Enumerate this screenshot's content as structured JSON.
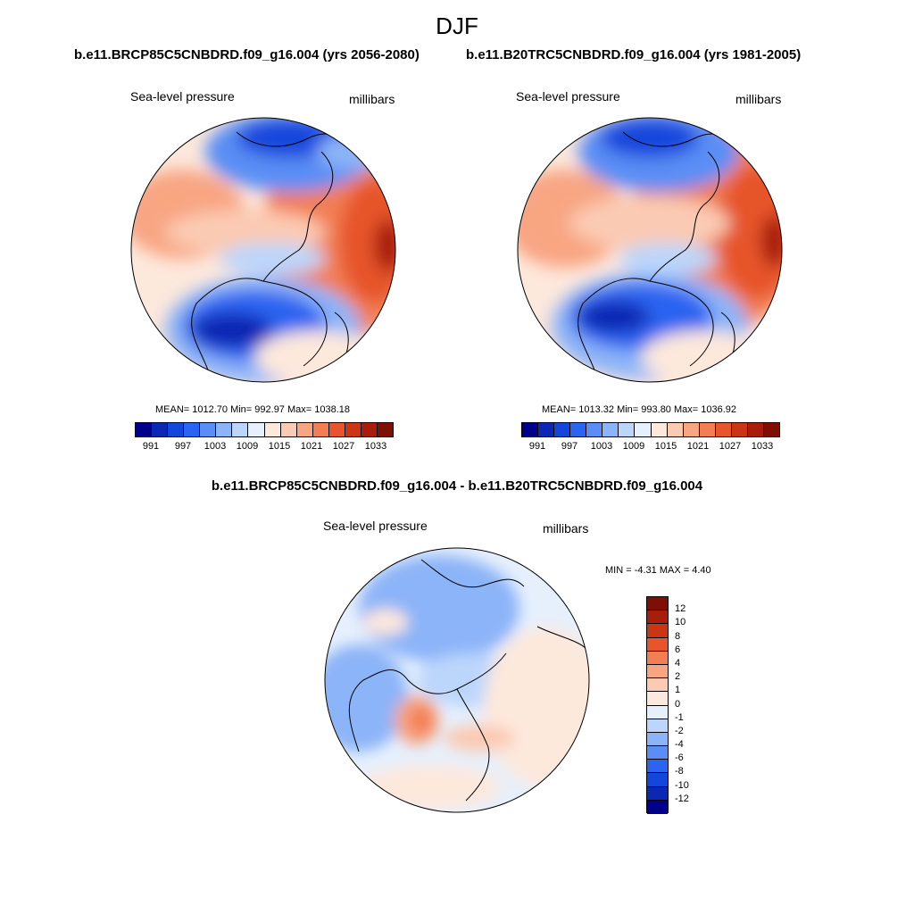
{
  "page": {
    "title": "DJF",
    "header_left": "b.e11.BRCP85C5CNBDRD.f09_g16.004 (yrs 2056-2080)",
    "header_right": "b.e11.B20TRC5CNBDRD.f09_g16.004 (yrs 1981-2005)",
    "diff_title": "b.e11.BRCP85C5CNBDRD.f09_g16.004 - b.e11.B20TRC5CNBDRD.f09_g16.004"
  },
  "panels": [
    {
      "variable": "Sea-level pressure",
      "units": "millibars",
      "stats_text": "MEAN= 1012.70  Min= 992.97  Max= 1038.18"
    },
    {
      "variable": "Sea-level pressure",
      "units": "millibars",
      "stats_text": "MEAN= 1013.32  Min= 993.80  Max= 1036.92"
    },
    {
      "variable": "Sea-level pressure",
      "units": "millibars",
      "stats_text": "MIN =  -4.31 MAX =   4.40"
    }
  ],
  "colors": {
    "abs_scale": [
      "#00008b",
      "#0a28b4",
      "#1446dc",
      "#2a64f0",
      "#5a8ef5",
      "#8cb4f8",
      "#bcd6fb",
      "#e6f0fd",
      "#fde8dc",
      "#fbcab3",
      "#f8a582",
      "#f37e53",
      "#e6552b",
      "#cc3514",
      "#a81e0a",
      "#7d0f05"
    ],
    "diff_scale": [
      "#7d0f05",
      "#a81e0a",
      "#cc3514",
      "#e6552b",
      "#f37e53",
      "#f8a582",
      "#fbcab3",
      "#fde8dc",
      "#e6f0fd",
      "#bcd6fb",
      "#8cb4f8",
      "#5a8ef5",
      "#2a64f0",
      "#1446dc",
      "#0a28b4",
      "#00008b"
    ]
  },
  "chart_data": [
    {
      "type": "heatmap",
      "projection": "polar-stereographic-north",
      "title": "Sea-level pressure",
      "units": "millibars",
      "period": "yrs 2056-2080",
      "case": "b.e11.BRCP85C5CNBDRD.f09_g16.004",
      "mean": 1012.7,
      "min": 992.97,
      "max": 1038.18,
      "colorbar_ticks": [
        "991",
        "997",
        "1003",
        "1009",
        "1015",
        "1021",
        "1027",
        "1033"
      ],
      "levels": [
        991,
        994,
        997,
        1000,
        1003,
        1006,
        1009,
        1012,
        1015,
        1018,
        1021,
        1024,
        1027,
        1030,
        1033
      ]
    },
    {
      "type": "heatmap",
      "projection": "polar-stereographic-north",
      "title": "Sea-level pressure",
      "units": "millibars",
      "period": "yrs 1981-2005",
      "case": "b.e11.B20TRC5CNBDRD.f09_g16.004",
      "mean": 1013.32,
      "min": 993.8,
      "max": 1036.92,
      "colorbar_ticks": [
        "991",
        "997",
        "1003",
        "1009",
        "1015",
        "1021",
        "1027",
        "1033"
      ],
      "levels": [
        991,
        994,
        997,
        1000,
        1003,
        1006,
        1009,
        1012,
        1015,
        1018,
        1021,
        1024,
        1027,
        1030,
        1033
      ]
    },
    {
      "type": "heatmap",
      "projection": "polar-stereographic-north",
      "title": "Sea-level pressure",
      "units": "millibars",
      "case": "b.e11.BRCP85C5CNBDRD.f09_g16.004 - b.e11.B20TRC5CNBDRD.f09_g16.004",
      "min": -4.31,
      "max": 4.4,
      "colorbar_ticks": [
        "12",
        "10",
        "8",
        "6",
        "4",
        "2",
        "1",
        "0",
        "-1",
        "-2",
        "-4",
        "-6",
        "-8",
        "-10",
        "-12"
      ]
    }
  ]
}
